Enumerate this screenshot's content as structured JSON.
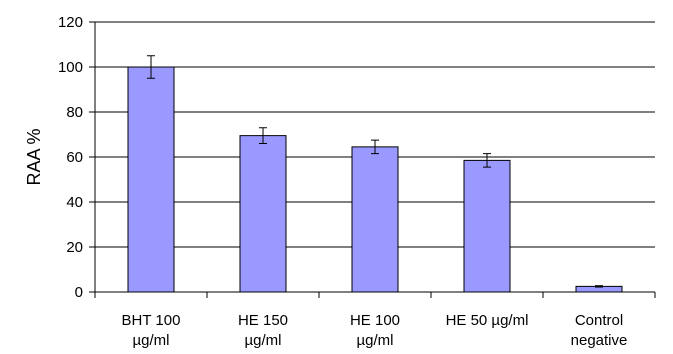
{
  "chart_data": {
    "type": "bar",
    "title": "",
    "xlabel": "",
    "ylabel": "RAA %",
    "ylim": [
      0,
      120
    ],
    "yticks": [
      "0",
      "20",
      "40",
      "60",
      "80",
      "100",
      "120"
    ],
    "grid": true,
    "legend": "none",
    "categories": [
      [
        "BHT 100",
        "µg/ml"
      ],
      [
        "HE 150",
        "µg/ml"
      ],
      [
        "HE 100",
        "µg/ml"
      ],
      [
        "HE 50 µg/ml"
      ],
      [
        "Control",
        "negative"
      ]
    ],
    "values": [
      100,
      69.5,
      64.5,
      58.5,
      2.5
    ],
    "errors": [
      5,
      3.5,
      3,
      3,
      0.3
    ],
    "bar_color": "#9999ff"
  }
}
